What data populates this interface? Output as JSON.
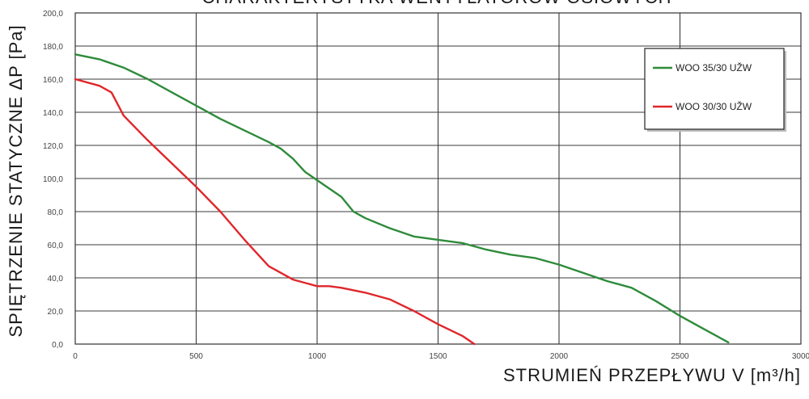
{
  "chart_data": {
    "type": "line",
    "title": "CHARAKTERYSTYKA WENTYLATORÓW OSIOWYCH",
    "xlabel": "STRUMIEŃ PRZEPŁYWU V [m³/h]",
    "ylabel": "SPIĘTRZENIE STATYCZNE ΔP [Pa]",
    "xlim": [
      0,
      3000
    ],
    "ylim": [
      0,
      200
    ],
    "xticks": [
      "0",
      "500",
      "1000",
      "1500",
      "2000",
      "2500",
      "3000"
    ],
    "yticks": [
      "0,0",
      "20,0",
      "40,0",
      "60,0",
      "80,0",
      "100,0",
      "120,0",
      "140,0",
      "160,0",
      "180,0",
      "200,0"
    ],
    "grid": true,
    "legend_position": "top-right",
    "series": [
      {
        "name": "WOO 35/30 UŽW",
        "color": "#2e8b3a",
        "x": [
          0,
          100,
          200,
          300,
          400,
          500,
          600,
          700,
          800,
          850,
          900,
          950,
          1000,
          1100,
          1150,
          1200,
          1300,
          1400,
          1500,
          1600,
          1700,
          1800,
          1900,
          2000,
          2100,
          2200,
          2300,
          2400,
          2500,
          2600,
          2700
        ],
        "y": [
          175,
          172,
          167,
          160,
          152,
          144,
          136,
          129,
          122,
          118,
          112,
          104,
          99,
          89,
          80,
          76,
          70,
          65,
          63,
          61,
          57,
          54,
          52,
          48,
          43,
          38,
          34,
          26,
          17,
          9,
          1
        ]
      },
      {
        "name": "WOO 30/30 UŽW",
        "color": "#e0262b",
        "x": [
          0,
          100,
          150,
          200,
          300,
          400,
          500,
          600,
          700,
          800,
          900,
          1000,
          1050,
          1100,
          1200,
          1300,
          1400,
          1500,
          1600,
          1650
        ],
        "y": [
          160,
          156,
          152,
          138,
          123,
          109,
          95,
          80,
          63,
          47,
          39,
          35,
          35,
          34,
          31,
          27,
          20,
          12,
          5,
          0
        ]
      }
    ]
  }
}
